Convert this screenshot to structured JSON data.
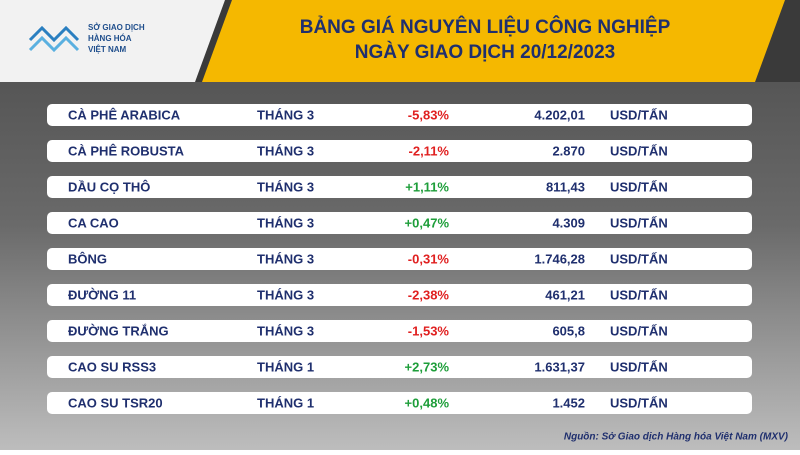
{
  "header": {
    "logo_lines": [
      "SỞ GIAO DỊCH",
      "HÀNG HÓA",
      "VIỆT NAM"
    ],
    "title_lines": [
      "BẢNG GIÁ NGUYÊN LIỆU CÔNG NGHIỆP",
      "NGÀY GIAO DỊCH 20/12/2023"
    ]
  },
  "table": {
    "rows": [
      [
        "CÀ PHÊ ARABICA",
        "THÁNG 3",
        "-5,83%",
        "4.202,01",
        "USD/TẤN"
      ],
      [
        "CÀ PHÊ ROBUSTA",
        "THÁNG 3",
        "-2,11%",
        "2.870",
        "USD/TẤN"
      ],
      [
        "DẦU CỌ THÔ",
        "THÁNG 3",
        "+1,11%",
        "811,43",
        "USD/TẤN"
      ],
      [
        "CA CAO",
        "THÁNG 3",
        "+0,47%",
        "4.309",
        "USD/TẤN"
      ],
      [
        "BÔNG",
        "THÁNG 3",
        "-0,31%",
        "1.746,28",
        "USD/TẤN"
      ],
      [
        "ĐƯỜNG 11",
        "THÁNG 3",
        "-2,38%",
        "461,21",
        "USD/TẤN"
      ],
      [
        "ĐƯỜNG TRẮNG",
        "THÁNG 3",
        "-1,53%",
        "605,8",
        "USD/TẤN"
      ],
      [
        "CAO SU RSS3",
        "THÁNG 1",
        "+2,73%",
        "1.631,37",
        "USD/TẤN"
      ],
      [
        "CAO SU TSR20",
        "THÁNG 1",
        "+0,48%",
        "1.452",
        "USD/TẤN"
      ]
    ]
  },
  "footer": {
    "source": "Nguồn: Sở Giao dịch Hàng hóa Việt Nam (MXV)"
  }
}
